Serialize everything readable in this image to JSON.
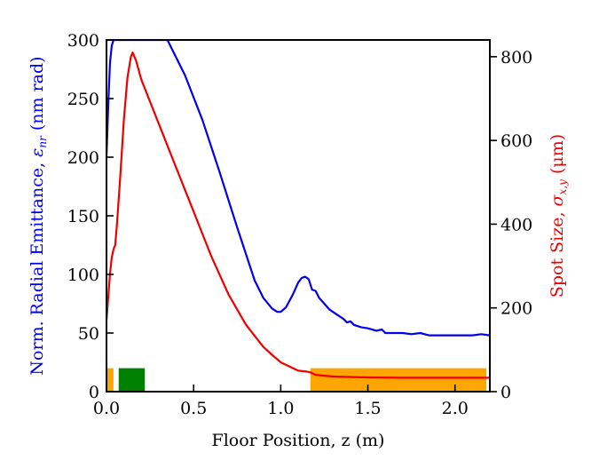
{
  "chart_data": {
    "type": "line",
    "xlabel": "Floor Position, z (m)",
    "ylabel_left": "Norm. Radial Emittance, ε_nr (nm rad)",
    "ylabel_right": "Spot Size, σ_x,y (μm)",
    "xlim": [
      0.0,
      2.2
    ],
    "ylim_left": [
      0,
      300
    ],
    "ylim_right": [
      0,
      840
    ],
    "x_ticks": [
      "0.0",
      "0.5",
      "1.0",
      "1.5",
      "2.0"
    ],
    "y_left_ticks": [
      "0",
      "50",
      "100",
      "150",
      "200",
      "250",
      "300"
    ],
    "y_right_ticks": [
      "0",
      "200",
      "400",
      "600",
      "800"
    ],
    "grid": false,
    "colors": {
      "emittance": "#0000ee",
      "spot_size": "#ee0000",
      "element_orange": "#ffa500",
      "element_green": "#008000"
    },
    "series": [
      {
        "axis": "left",
        "x": [
          0.0,
          0.01,
          0.02,
          0.03,
          0.04,
          0.35,
          0.45,
          0.55,
          0.65,
          0.75,
          0.85,
          0.9,
          0.95,
          0.98,
          1.0,
          1.03,
          1.07,
          1.1,
          1.12,
          1.14,
          1.16,
          1.18,
          1.2,
          1.22,
          1.25,
          1.28,
          1.32,
          1.36,
          1.38,
          1.4,
          1.42,
          1.46,
          1.5,
          1.55,
          1.58,
          1.6,
          1.64,
          1.7,
          1.75,
          1.8,
          1.85,
          1.9,
          2.0,
          2.1,
          2.15,
          2.2
        ],
        "y": [
          200,
          245,
          280,
          295,
          300,
          300,
          270,
          232,
          187,
          140,
          95,
          80,
          71,
          68,
          68,
          72,
          83,
          93,
          97,
          98,
          96,
          87,
          86,
          80,
          75,
          70,
          66,
          62,
          59,
          60,
          57,
          55,
          54,
          52,
          53,
          50,
          50,
          50,
          49,
          50,
          48,
          48,
          48,
          48,
          49,
          48
        ]
      },
      {
        "axis": "right",
        "x": [
          0.0,
          0.02,
          0.03,
          0.04,
          0.05,
          0.06,
          0.08,
          0.1,
          0.12,
          0.14,
          0.15,
          0.17,
          0.2,
          0.3,
          0.4,
          0.5,
          0.6,
          0.7,
          0.8,
          0.9,
          0.95,
          1.0,
          1.05,
          1.1,
          1.15,
          1.17,
          1.2,
          1.3,
          1.5,
          1.7,
          1.9,
          2.2
        ],
        "y": [
          170,
          280,
          320,
          340,
          350,
          400,
          520,
          650,
          750,
          800,
          810,
          790,
          745,
          640,
          535,
          430,
          325,
          232,
          160,
          107,
          88,
          70,
          60,
          50,
          48,
          46,
          40,
          36,
          34,
          33,
          33,
          33
        ]
      }
    ],
    "elements": [
      {
        "color": "orange",
        "x": [
          0.0,
          0.04
        ],
        "height": 20
      },
      {
        "color": "green",
        "x": [
          0.07,
          0.22
        ],
        "height": 20
      },
      {
        "color": "orange",
        "x": [
          1.17,
          2.18
        ],
        "height": 20
      }
    ]
  }
}
